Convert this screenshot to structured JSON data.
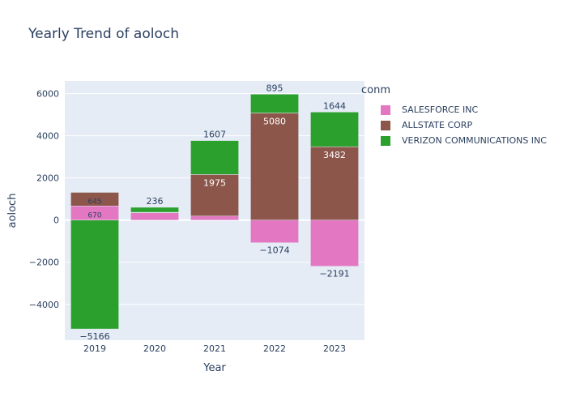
{
  "chart_data": {
    "type": "bar",
    "barmode": "relative",
    "title": "Yearly Trend of aoloch",
    "xlabel": "Year",
    "ylabel": "aoloch",
    "categories": [
      "2019",
      "2020",
      "2021",
      "2022",
      "2023"
    ],
    "ylim": [
      -5700,
      6600
    ],
    "yticks": [
      -4000,
      -2000,
      0,
      2000,
      4000,
      6000
    ],
    "ytick_labels": [
      "−4000",
      "−2000",
      "0",
      "2000",
      "4000",
      "6000"
    ],
    "legend_title": "conm",
    "legend_position": "right",
    "grid": true,
    "series": [
      {
        "name": "SALESFORCE INC",
        "color": "#e377c2",
        "values": [
          670,
          350,
          190,
          -1074,
          -2191
        ],
        "labels": [
          "670",
          "",
          "",
          "−1074",
          "−2191"
        ]
      },
      {
        "name": "ALLSTATE CORP",
        "color": "#8c564b",
        "values": [
          645,
          20,
          1975,
          5080,
          3482
        ],
        "labels": [
          "645",
          "",
          "1975",
          "5080",
          "3482"
        ]
      },
      {
        "name": "VERIZON COMMUNICATIONS INC",
        "color": "#2ca02c",
        "values": [
          -5166,
          236,
          1607,
          895,
          1644
        ],
        "labels": [
          "−5166",
          "236",
          "1607",
          "895",
          "1644"
        ]
      }
    ]
  }
}
